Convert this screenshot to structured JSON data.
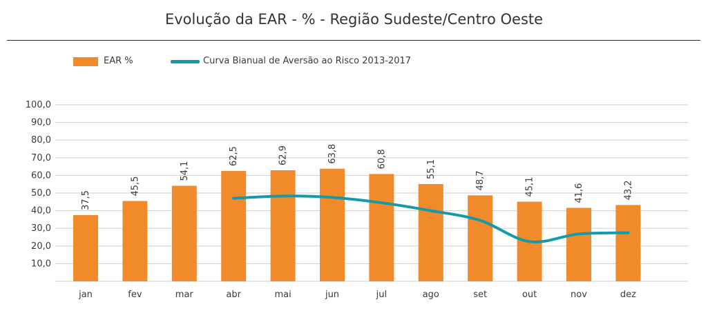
{
  "title": "Evolução da EAR - % - Região Sudeste/Centro Oeste",
  "colors": {
    "bar": "#f08a2a",
    "line": "#149aab",
    "grid": "#d0d0d0",
    "text": "#3a3a3a"
  },
  "chart_data": {
    "type": "bar",
    "categories": [
      "jan",
      "fev",
      "mar",
      "abr",
      "mai",
      "jun",
      "jul",
      "ago",
      "set",
      "out",
      "nov",
      "dez"
    ],
    "series": [
      {
        "name": "EAR %",
        "type": "bar",
        "values": [
          37.5,
          45.5,
          54.1,
          62.5,
          62.9,
          63.8,
          60.8,
          55.1,
          48.7,
          45.1,
          41.6,
          43.2
        ],
        "value_labels": [
          "37,5",
          "45,5",
          "54,1",
          "62,5",
          "62,9",
          "63,8",
          "60,8",
          "55,1",
          "48,7",
          "45,1",
          "41,6",
          "43,2"
        ]
      },
      {
        "name": "Curva Bianual de Aversão ao Risco 2013-2017",
        "type": "line",
        "values": [
          null,
          null,
          null,
          47.0,
          48.3,
          47.5,
          44.5,
          40.0,
          34.5,
          22.5,
          26.8,
          27.5
        ]
      }
    ],
    "yticks": [
      "",
      "10,0",
      "20,0",
      "30,0",
      "40,0",
      "50,0",
      "60,0",
      "70,0",
      "80,0",
      "90,0",
      "100,0"
    ],
    "ylim": [
      0,
      100
    ],
    "grid": true,
    "legend": "top-left"
  }
}
